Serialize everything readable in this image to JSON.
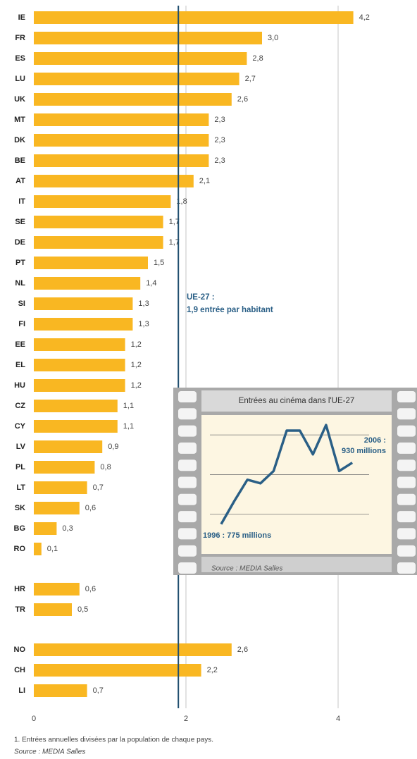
{
  "chart_data": [
    {
      "type": "bar",
      "orientation": "horizontal",
      "categories": [
        "IE",
        "FR",
        "ES",
        "LU",
        "UK",
        "MT",
        "DK",
        "BE",
        "AT",
        "IT",
        "SE",
        "DE",
        "PT",
        "NL",
        "SI",
        "FI",
        "EE",
        "EL",
        "HU",
        "CZ",
        "CY",
        "LV",
        "PL",
        "LT",
        "SK",
        "BG",
        "RO",
        "HR",
        "TR",
        "NO",
        "CH",
        "LI"
      ],
      "values": [
        4.2,
        3.0,
        2.8,
        2.7,
        2.6,
        2.3,
        2.3,
        2.3,
        2.1,
        1.8,
        1.7,
        1.7,
        1.5,
        1.4,
        1.3,
        1.3,
        1.2,
        1.2,
        1.2,
        1.1,
        1.1,
        0.9,
        0.8,
        0.7,
        0.6,
        0.3,
        0.1,
        0.6,
        0.5,
        2.6,
        2.2,
        0.7
      ],
      "value_labels": [
        "4,2",
        "3,0",
        "2,8",
        "2,7",
        "2,6",
        "2,3",
        "2,3",
        "2,3",
        "2,1",
        "1,8",
        "1,7",
        "1,7",
        "1,5",
        "1,4",
        "1,3",
        "1,3",
        "1,2",
        "1,2",
        "1,2",
        "1,1",
        "1,1",
        "0,9",
        "0,8",
        "0,7",
        "0,6",
        "0,3",
        "0,1",
        "0,6",
        "0,5",
        "2,6",
        "2,2",
        "0,7"
      ],
      "color": "#f9b722",
      "xlim": [
        0,
        5
      ],
      "xticks": [
        0,
        2,
        4
      ],
      "grid": true,
      "reference_line": {
        "value": 1.9,
        "color": "#1f4e6e"
      },
      "annotations": [
        "UE-27 :",
        "1,9 entrée par habitant"
      ]
    },
    {
      "type": "line",
      "title": "Entrées au cinéma dans l'UE-27",
      "x": [
        1996,
        1997,
        1998,
        1999,
        2000,
        2001,
        2002,
        2003,
        2004,
        2005,
        2006
      ],
      "values": [
        775,
        833,
        887,
        878,
        909,
        1011,
        1011,
        951,
        1025,
        909,
        930
      ],
      "color": "#2a5f86",
      "xlim": [
        1994.5,
        2009
      ],
      "ylim": [
        700,
        1050
      ],
      "yticks": [
        800,
        900,
        1000
      ],
      "grid": true,
      "annotations": [
        "1996 : 775 millions",
        "2006 :",
        "930 millions"
      ],
      "source": "Source : MEDIA Salles"
    }
  ],
  "footnote": "1. Entrées annuelles divisées par la population de chaque pays.",
  "source": "Source : MEDIA Salles"
}
